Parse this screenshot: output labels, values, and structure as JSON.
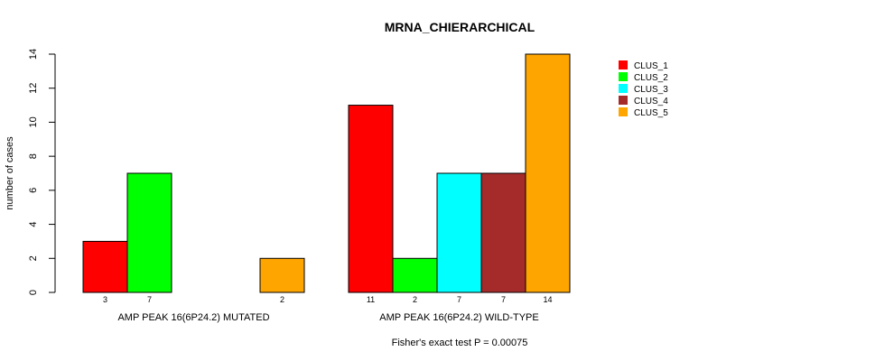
{
  "chart_data": {
    "type": "bar",
    "title": "MRNA_CHIERARCHICAL",
    "ylabel": "number of cases",
    "xlabel": "",
    "ylim": [
      0,
      14
    ],
    "yticks": [
      0,
      2,
      4,
      6,
      8,
      10,
      12,
      14
    ],
    "groups": [
      "AMP PEAK 16(6P24.2) MUTATED",
      "AMP PEAK 16(6P24.2) WILD-TYPE"
    ],
    "series": [
      {
        "name": "CLUS_1",
        "color": "#ff0000",
        "values": [
          3,
          11
        ]
      },
      {
        "name": "CLUS_2",
        "color": "#00ff00",
        "values": [
          7,
          2
        ]
      },
      {
        "name": "CLUS_3",
        "color": "#00ffff",
        "values": [
          0,
          7
        ]
      },
      {
        "name": "CLUS_4",
        "color": "#a52a2a",
        "values": [
          0,
          7
        ]
      },
      {
        "name": "CLUS_5",
        "color": "#ffa500",
        "values": [
          2,
          14
        ]
      }
    ],
    "footnote": "Fisher's exact test P = 0.00075",
    "legend_position": "top-right"
  }
}
